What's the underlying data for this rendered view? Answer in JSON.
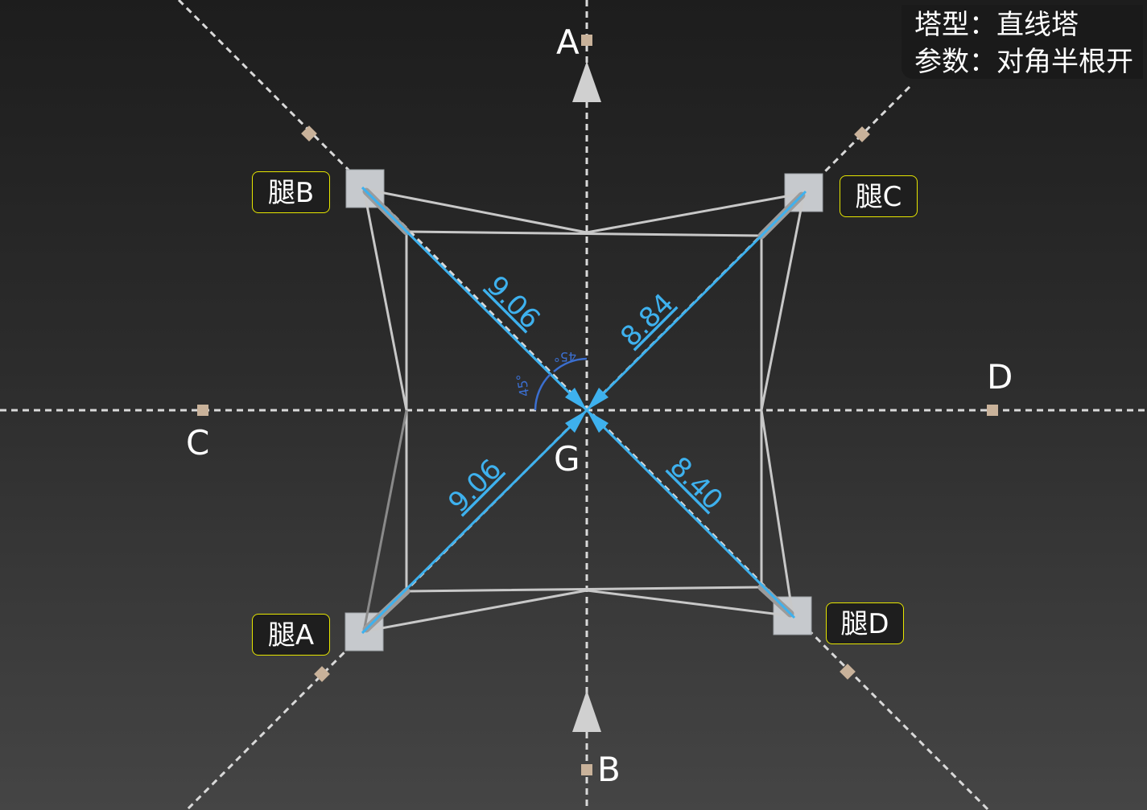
{
  "info": {
    "tower_type": "塔型：直线塔",
    "parameter": "参数：对角半根开"
  },
  "legs": {
    "a": "腿A",
    "b": "腿B",
    "c": "腿C",
    "d": "腿D"
  },
  "axes": {
    "a": "A",
    "b": "B",
    "c": "C",
    "d": "D",
    "center": "G"
  },
  "dimensions": {
    "leg_b": "9.06",
    "leg_c": "8.84",
    "leg_a": "9.06",
    "leg_d": "8.40",
    "angle_1": "45°",
    "angle_2": "45°"
  },
  "colors": {
    "dimension": "#3eb1ee",
    "angle": "#3b6fd0",
    "frame": "#c8c8c8",
    "label_border": "#e6e600",
    "marker": "#c9b29a"
  }
}
